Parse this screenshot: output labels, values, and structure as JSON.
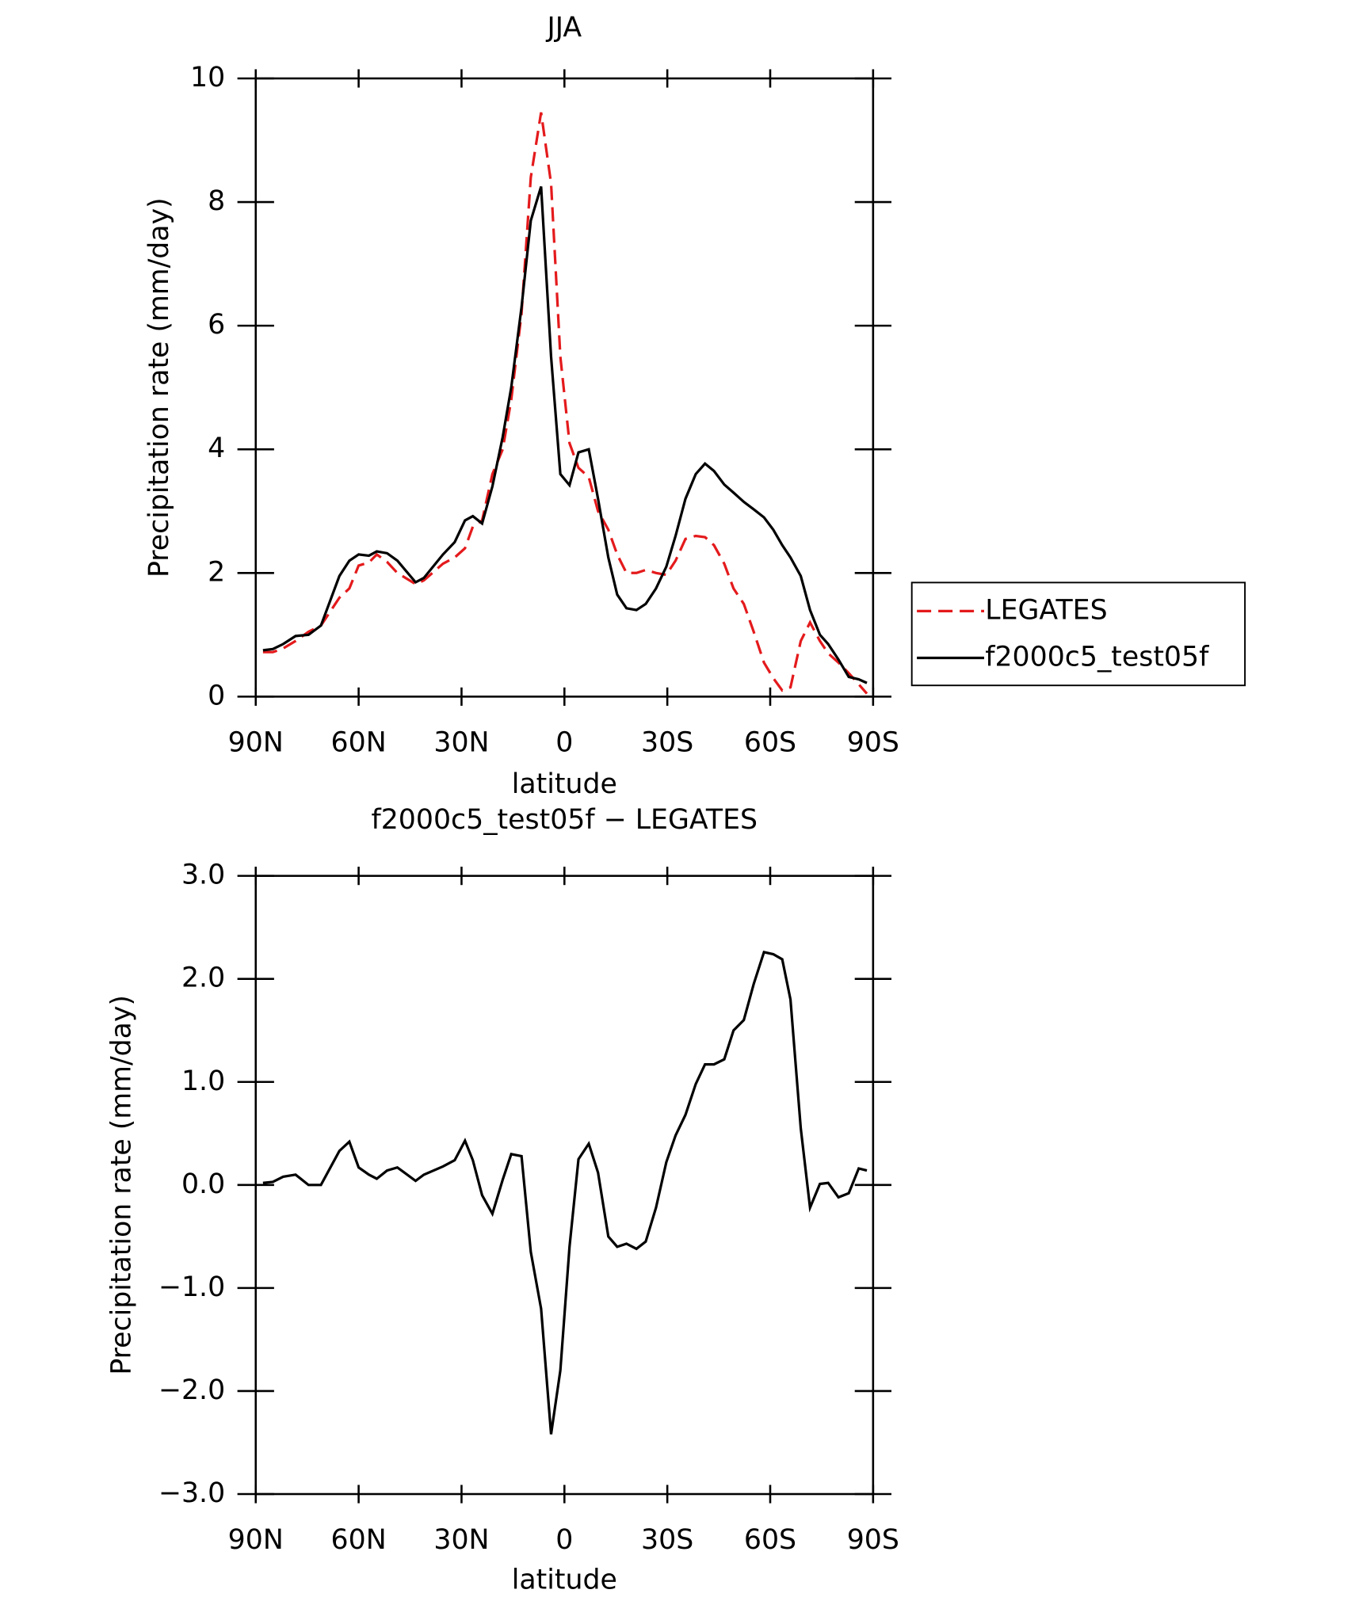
{
  "chart_data": [
    {
      "type": "line",
      "title": "JJA",
      "x_label": "latitude",
      "y_label": "Precipitation rate (mm/day)",
      "x": [
        87.9,
        85,
        82,
        78.4,
        74.6,
        71,
        65.6,
        62.7,
        60,
        57,
        54.7,
        51.7,
        48.7,
        43.4,
        41,
        35.4,
        32,
        29,
        26.7,
        24,
        21,
        18,
        15.5,
        12.5,
        9.8,
        6.8,
        3.9,
        1.2,
        -1.5,
        -4.1,
        -7.1,
        -9.8,
        -12.8,
        -15.4,
        -18.1,
        -21,
        -23.7,
        -26.7,
        -29.7,
        -32.4,
        -35.3,
        -38.3,
        -41,
        -43.6,
        -46.6,
        -49.3,
        -52.3,
        -55.2,
        -58.2,
        -60.9,
        -63.5,
        -65.9,
        -68.9,
        -71.6,
        -74.5,
        -76.9,
        -79.9,
        -82.9,
        -85.8,
        -88.2
      ],
      "xlim": [
        90,
        -90
      ],
      "xticks": [
        {
          "value": 90,
          "label": "90N"
        },
        {
          "value": 60,
          "label": "60N"
        },
        {
          "value": 30,
          "label": "30N"
        },
        0,
        {
          "value": -30,
          "label": "30S"
        },
        {
          "value": -60,
          "label": "60S"
        },
        {
          "value": -90,
          "label": "90S"
        }
      ],
      "ylim": [
        0,
        10
      ],
      "yticks": [
        0,
        2,
        4,
        6,
        8,
        10
      ],
      "series": [
        {
          "name": "LEGATES",
          "color": "#e41a1c",
          "dashed": true,
          "values": [
            0.72,
            0.72,
            0.78,
            0.9,
            1.05,
            1.15,
            1.6,
            1.75,
            2.12,
            2.17,
            2.3,
            2.18,
            2.0,
            1.82,
            1.88,
            2.15,
            2.25,
            2.4,
            2.75,
            2.85,
            3.6,
            4.0,
            4.8,
            6.2,
            8.4,
            9.45,
            8.3,
            5.5,
            4.1,
            3.7,
            3.55,
            3.0,
            2.7,
            2.3,
            2.0,
            2.0,
            2.05,
            2.0,
            1.97,
            2.2,
            2.55,
            2.6,
            2.58,
            2.45,
            2.15,
            1.75,
            1.5,
            1.05,
            0.55,
            0.3,
            0.1,
            0.15,
            0.9,
            1.2,
            0.9,
            0.7,
            0.55,
            0.38,
            0.2,
            0.05
          ]
        },
        {
          "name": "f2000c5_test05f",
          "color": "#000000",
          "dashed": false,
          "values": [
            0.75,
            0.77,
            0.85,
            0.98,
            1.0,
            1.15,
            1.95,
            2.2,
            2.3,
            2.28,
            2.35,
            2.32,
            2.2,
            1.85,
            1.92,
            2.3,
            2.5,
            2.85,
            2.92,
            2.8,
            3.4,
            4.2,
            5.0,
            6.3,
            7.7,
            8.25,
            5.5,
            3.6,
            3.42,
            3.95,
            4.0,
            3.2,
            2.25,
            1.65,
            1.43,
            1.4,
            1.5,
            1.75,
            2.1,
            2.6,
            3.2,
            3.6,
            3.77,
            3.65,
            3.43,
            3.3,
            3.15,
            3.03,
            2.9,
            2.7,
            2.45,
            2.25,
            1.95,
            1.4,
            1.0,
            0.85,
            0.6,
            0.32,
            0.28,
            0.22
          ]
        }
      ]
    },
    {
      "type": "line",
      "title": "f2000c5_test05f − LEGATES",
      "x_label": "latitude",
      "y_label": "Precipitation rate (mm/day)",
      "x": [
        87.9,
        85,
        82,
        78.4,
        74.6,
        71,
        65.6,
        62.7,
        60,
        57,
        54.7,
        51.7,
        48.7,
        43.4,
        41,
        35.4,
        32,
        29,
        26.7,
        24,
        21,
        18,
        15.5,
        12.5,
        9.8,
        6.8,
        3.9,
        1.2,
        -1.5,
        -4.1,
        -7.1,
        -9.8,
        -12.8,
        -15.4,
        -18.1,
        -21,
        -23.7,
        -26.7,
        -29.7,
        -32.4,
        -35.3,
        -38.3,
        -41,
        -43.6,
        -46.6,
        -49.3,
        -52.3,
        -55.2,
        -58.2,
        -60.9,
        -63.5,
        -65.9,
        -68.9,
        -71.6,
        -74.5,
        -76.9,
        -79.9,
        -82.9,
        -85.8,
        -88.2
      ],
      "xlim": [
        90,
        -90
      ],
      "xticks": [
        {
          "value": 90,
          "label": "90N"
        },
        {
          "value": 60,
          "label": "60N"
        },
        {
          "value": 30,
          "label": "30N"
        },
        0,
        {
          "value": -30,
          "label": "30S"
        },
        {
          "value": -60,
          "label": "60S"
        },
        {
          "value": -90,
          "label": "90S"
        }
      ],
      "ylim": [
        -3,
        3
      ],
      "yticks": [
        {
          "value": -3,
          "label": "−3.0"
        },
        {
          "value": -2,
          "label": "−2.0"
        },
        {
          "value": -1,
          "label": "−1.0"
        },
        {
          "value": 0,
          "label": "0.0"
        },
        {
          "value": 1,
          "label": "1.0"
        },
        {
          "value": 2,
          "label": "2.0"
        },
        {
          "value": 3,
          "label": "3.0"
        }
      ],
      "series": [
        {
          "color": "#000000",
          "dashed": false,
          "values": [
            0.02,
            0.03,
            0.08,
            0.1,
            0.0,
            0.0,
            0.33,
            0.42,
            0.17,
            0.1,
            0.06,
            0.14,
            0.17,
            0.04,
            0.1,
            0.18,
            0.24,
            0.43,
            0.24,
            -0.1,
            -0.28,
            0.05,
            0.3,
            0.28,
            -0.65,
            -1.2,
            -2.42,
            -1.8,
            -0.6,
            0.25,
            0.4,
            0.12,
            -0.5,
            -0.6,
            -0.57,
            -0.62,
            -0.55,
            -0.22,
            0.22,
            0.48,
            0.68,
            0.98,
            1.17,
            1.17,
            1.22,
            1.5,
            1.6,
            1.95,
            2.26,
            2.24,
            2.19,
            1.8,
            0.55,
            -0.22,
            0.01,
            0.02,
            -0.12,
            -0.08,
            0.16,
            0.14
          ]
        }
      ]
    }
  ]
}
